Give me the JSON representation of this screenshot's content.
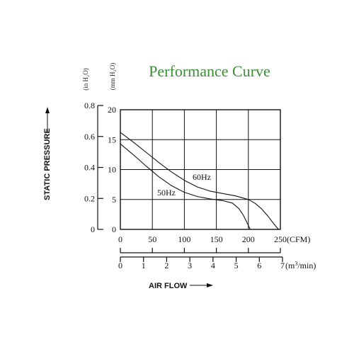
{
  "chart_data": {
    "type": "line",
    "title": "Performance Curve",
    "title_color": "#3c8c37",
    "xlabel": "AIR FLOW",
    "ylabel": "STATIC PRESSURE",
    "units_left_outer": "(in H₂O)",
    "units_left_inner": "(mm H₂O)",
    "x_unit_primary": "(CFM)",
    "x_unit_secondary": "(m³/min)",
    "xlim": [
      0,
      250
    ],
    "ylim": [
      0,
      20
    ],
    "grid": true,
    "x_ticks_cfm": [
      "0",
      "50",
      "100",
      "150",
      "200",
      "250"
    ],
    "x_ticks_m3min": [
      "0",
      "1",
      "2",
      "3",
      "4",
      "5",
      "6",
      "7"
    ],
    "y_ticks_mm": [
      "0",
      "5",
      "10",
      "15",
      "20"
    ],
    "y_ticks_in": [
      "0",
      "0.2",
      "0.4",
      "0.6",
      "0.8"
    ],
    "series": [
      {
        "name": "60Hz",
        "x": [
          0,
          20,
          40,
          60,
          80,
          100,
          120,
          140,
          160,
          180,
          200,
          210,
          220,
          230,
          240,
          247
        ],
        "y": [
          16.2,
          14.6,
          12.9,
          11.2,
          9.6,
          8.2,
          7.1,
          6.4,
          6.0,
          5.6,
          5.0,
          4.4,
          3.5,
          2.3,
          0.9,
          0
        ]
      },
      {
        "name": "50Hz",
        "x": [
          0,
          20,
          40,
          60,
          80,
          100,
          120,
          140,
          160,
          175,
          185,
          192,
          198,
          203
        ],
        "y": [
          14.3,
          12.5,
          10.6,
          8.8,
          7.3,
          6.2,
          5.5,
          5.1,
          4.8,
          4.4,
          3.5,
          2.4,
          1.1,
          0
        ]
      }
    ]
  }
}
